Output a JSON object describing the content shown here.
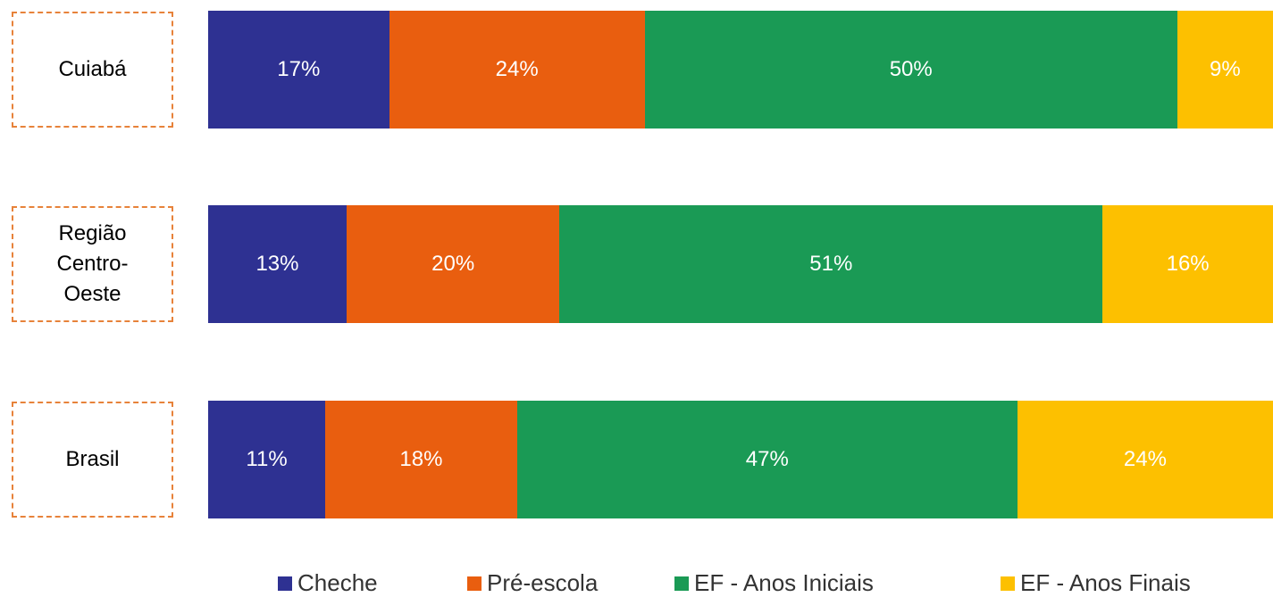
{
  "chart_data": {
    "type": "stacked-bar-horizontal",
    "categories": [
      "Cuiabá",
      "Região Centro-Oeste",
      "Brasil"
    ],
    "xlim": [
      0,
      100
    ],
    "series": [
      {
        "name": "Cheche",
        "color": "#2e3192",
        "values": [
          17,
          13,
          11
        ],
        "value_labels": [
          "17%",
          "13%",
          "11%"
        ]
      },
      {
        "name": "Pré-escola",
        "color": "#e95e0f",
        "values": [
          24,
          20,
          18
        ],
        "value_labels": [
          "24%",
          "20%",
          "18%"
        ]
      },
      {
        "name": "EF - Anos Iniciais",
        "color": "#1a9a55",
        "values": [
          50,
          51,
          47
        ],
        "value_labels": [
          "50%",
          "51%",
          "47%"
        ]
      },
      {
        "name": "EF - Anos Finais",
        "color": "#fdc000",
        "values": [
          9,
          16,
          24
        ],
        "value_labels": [
          "9%",
          "16%",
          "24%"
        ]
      }
    ]
  }
}
